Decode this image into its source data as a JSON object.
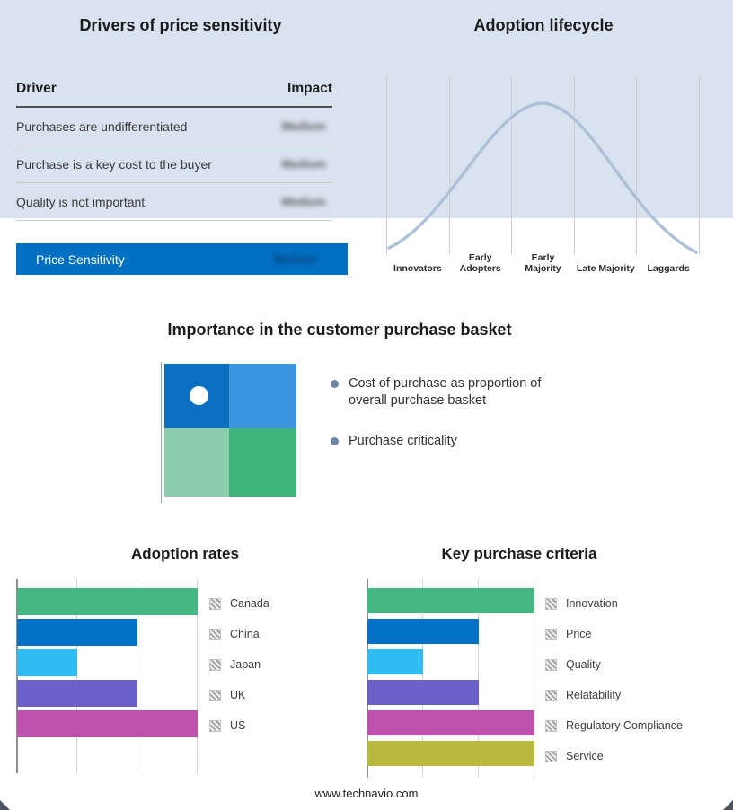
{
  "drivers_panel": {
    "title": "Drivers of price sensitivity",
    "columns": {
      "driver": "Driver",
      "impact": "Impact"
    },
    "rows": [
      {
        "driver": "Purchases are undifferentiated",
        "impact": "Medium"
      },
      {
        "driver": "Purchase is a key cost to the buyer",
        "impact": "Medium"
      },
      {
        "driver": "Quality is not important",
        "impact": "Medium"
      }
    ],
    "summary_row": {
      "label": "Price Sensitivity",
      "impact": "Medium"
    },
    "accent_color": "#0070c2"
  },
  "basket_panel": {
    "title": "Importance in the customer purchase basket",
    "background_color": "#d9e3f0",
    "quadrant_colors": {
      "top_left": "#0d6fc0",
      "top_right": "#3f96e0",
      "bottom_left": "#8bcdaa",
      "bottom_right": "#3eb47c"
    },
    "bullets": [
      "Cost of purchase as proportion of overall purchase basket",
      "Purchase criticality"
    ]
  },
  "footer": {
    "text": "www.technavio.com"
  },
  "chart_data": [
    {
      "name": "adoption_lifecycle",
      "type": "area",
      "title": "Adoption lifecycle",
      "categories": [
        "Innovators",
        "Early Adopters",
        "Early Majority",
        "Late Majority",
        "Laggards"
      ],
      "description": "bell-shaped adoption lifecycle curve across five adopter stages",
      "curve_color": "#aebfd8",
      "grid": true
    },
    {
      "name": "adoption_rates",
      "type": "bar",
      "title": "Adoption rates",
      "orientation": "horizontal",
      "categories": [
        "Canada",
        "China",
        "Japan",
        "UK",
        "US"
      ],
      "values": [
        3,
        2,
        1,
        2,
        3
      ],
      "xlim": [
        0,
        3
      ],
      "colors": [
        "#45b783",
        "#0072c6",
        "#2fbcf2",
        "#6b5fc8",
        "#c050ae"
      ],
      "grid": true,
      "legend_position": "right"
    },
    {
      "name": "key_purchase_criteria",
      "type": "bar",
      "title": "Key purchase criteria",
      "orientation": "horizontal",
      "categories": [
        "Innovation",
        "Price",
        "Quality",
        "Relatability",
        "Regulatory Compliance",
        "Service"
      ],
      "values": [
        3,
        2,
        1,
        2,
        3,
        3
      ],
      "xlim": [
        0,
        3
      ],
      "colors": [
        "#45b783",
        "#0072c6",
        "#2fbcf2",
        "#6b5fc8",
        "#c050ae",
        "#b9ba3d"
      ],
      "grid": true,
      "legend_position": "right"
    }
  ]
}
